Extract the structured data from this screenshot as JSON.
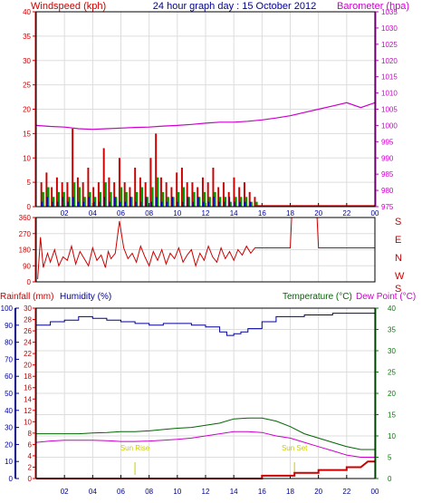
{
  "header": {
    "left_label": "Windspeed (kph)",
    "title": "24 hour graph day : 15 October 2012",
    "right_label": "Barometer (hpa)"
  },
  "colors": {
    "red": "#cc0000",
    "magenta": "#cc00cc",
    "blue": "#000099",
    "green": "#008000",
    "darkgreen": "#006600",
    "yellow": "#cccc00",
    "frame": "#000000",
    "wind_bar_red": "#cc0000",
    "wind_bar_green": "#009900",
    "wind_bar_blue": "#0000cc"
  },
  "chart_data": [
    {
      "id": "wind_baro",
      "type": "bar+line",
      "x_ticks": [
        "02",
        "04",
        "06",
        "08",
        "10",
        "12",
        "14",
        "16",
        "18",
        "20",
        "22",
        "00"
      ],
      "left_axis": {
        "label": "Windspeed (kph)",
        "ticks": [
          0,
          5,
          10,
          15,
          20,
          25,
          30,
          35,
          40
        ],
        "lim": [
          0,
          40
        ]
      },
      "right_axis": {
        "label": "Barometer (hpa)",
        "ticks": [
          975,
          980,
          985,
          990,
          995,
          1000,
          1005,
          1010,
          1015,
          1020,
          1025,
          1030,
          1035
        ],
        "lim": [
          975,
          1035
        ]
      },
      "barometer": {
        "x": [
          0,
          1,
          2,
          3,
          4,
          5,
          6,
          7,
          8,
          9,
          10,
          11,
          12,
          13,
          14,
          15,
          16,
          17,
          18,
          19,
          20,
          21,
          22,
          23,
          24
        ],
        "values": [
          1000,
          999.7,
          999.5,
          999,
          998.8,
          999,
          999.2,
          999.4,
          999.5,
          999.8,
          1000,
          1000.3,
          1000.7,
          1001,
          1001,
          1001.3,
          1001.7,
          1002.3,
          1003,
          1004,
          1005,
          1006,
          1007,
          1005.5,
          1007
        ]
      },
      "wind_gust": {
        "x_end": 15.5,
        "values": [
          5,
          7,
          4,
          6,
          5,
          5,
          16,
          6,
          5,
          8,
          4,
          5,
          12,
          6,
          5,
          10,
          5,
          4,
          8,
          6,
          5,
          10,
          15,
          6,
          5,
          4,
          7,
          8,
          5,
          5,
          4,
          6,
          5,
          8,
          4,
          5,
          3,
          6,
          4,
          5,
          3,
          2
        ]
      },
      "wind_avg": {
        "x_end": 15.5,
        "values": [
          3,
          4,
          2,
          3,
          3,
          2,
          5,
          4,
          2,
          3,
          2,
          3,
          5,
          3,
          2,
          4,
          3,
          2,
          3,
          4,
          2,
          4,
          6,
          3,
          2,
          2,
          3,
          4,
          2,
          3,
          2,
          3,
          2,
          3,
          2,
          2,
          1,
          2,
          2,
          2,
          1,
          1
        ]
      },
      "wind_dir_sample": {
        "x_end": 15.5,
        "values": [
          1,
          2,
          1,
          1,
          2,
          1,
          2,
          1,
          1,
          2,
          1,
          1,
          2,
          1,
          2,
          1,
          1,
          2,
          1,
          1,
          2,
          1,
          2,
          1,
          1,
          2,
          1,
          1,
          2,
          1,
          2,
          1,
          1,
          2,
          1,
          1,
          2,
          1,
          1,
          1,
          1,
          0
        ]
      },
      "wind_after_zero": {
        "x_start": 15.5,
        "x_end": 24,
        "value": 0
      }
    },
    {
      "id": "wind_direction",
      "type": "line",
      "x_ticks": [
        "02",
        "04",
        "06",
        "08",
        "10",
        "12",
        "14",
        "16",
        "18",
        "20",
        "22",
        "00"
      ],
      "left_axis": {
        "ticks": [
          0,
          90,
          180,
          270,
          360
        ],
        "lim": [
          0,
          360
        ]
      },
      "right_axis": {
        "labels": [
          "S",
          "E",
          "N",
          "W",
          "S"
        ]
      },
      "direction": {
        "x": [
          0.1,
          0.3,
          0.5,
          0.8,
          1.0,
          1.3,
          1.6,
          1.9,
          2.2,
          2.5,
          2.8,
          3.1,
          3.4,
          3.7,
          4.0,
          4.3,
          4.6,
          4.9,
          5.1,
          5.3,
          5.6,
          5.9,
          6.2,
          6.5,
          6.8,
          7.1,
          7.4,
          7.7,
          8.0,
          8.3,
          8.6,
          8.9,
          9.2,
          9.5,
          9.8,
          10.1,
          10.4,
          10.7,
          11.0,
          11.3,
          11.6,
          11.9,
          12.2,
          12.5,
          12.8,
          13.1,
          13.4,
          13.7,
          14.0,
          14.3,
          14.6,
          14.9,
          15.2,
          15.5,
          16.0,
          16.5,
          17.0,
          17.5,
          18.0,
          18.1,
          19.0,
          19.9,
          20.0,
          21.0,
          22.0,
          23.0,
          24.0
        ],
        "values": [
          15,
          250,
          80,
          160,
          110,
          180,
          90,
          140,
          120,
          200,
          100,
          170,
          130,
          90,
          190,
          120,
          150,
          80,
          170,
          130,
          160,
          340,
          190,
          130,
          160,
          110,
          200,
          140,
          90,
          170,
          120,
          180,
          100,
          160,
          130,
          190,
          110,
          150,
          180,
          90,
          160,
          120,
          200,
          140,
          110,
          190,
          130,
          170,
          120,
          180,
          150,
          200,
          160,
          190,
          190,
          190,
          190,
          190,
          190,
          360,
          360,
          360,
          190,
          190,
          190,
          190,
          190
        ]
      }
    },
    {
      "id": "rain_hum_temp",
      "type": "line",
      "x_ticks": [
        "02",
        "04",
        "06",
        "08",
        "10",
        "12",
        "14",
        "16",
        "18",
        "20",
        "22",
        "00"
      ],
      "labels": {
        "rainfall": "Rainfall (mm)",
        "humidity": "Humidity (%)",
        "temperature": "Temperature (°C)",
        "dewpoint": "Dew Point (°C)"
      },
      "humidity_axis": {
        "ticks": [
          0,
          10,
          20,
          30,
          40,
          50,
          60,
          70,
          80,
          90,
          100
        ],
        "lim": [
          0,
          100
        ]
      },
      "rainfall_axis": {
        "ticks": [
          0,
          2,
          4,
          6,
          8,
          10,
          12,
          14,
          16,
          18,
          20,
          22,
          24,
          26,
          28,
          30
        ],
        "lim": [
          0,
          30
        ]
      },
      "temp_axis": {
        "ticks": [
          0,
          5,
          10,
          15,
          20,
          25,
          30,
          35,
          40
        ],
        "lim": [
          0,
          40
        ]
      },
      "annotations": [
        {
          "text": "Sun Rise",
          "x": 7.0
        },
        {
          "text": "Sun Set",
          "x": 18.3
        }
      ],
      "humidity": {
        "x": [
          0,
          1,
          2,
          3,
          4,
          5,
          6,
          7,
          8,
          9,
          10,
          11,
          12,
          13,
          13.5,
          14,
          14.5,
          15,
          16,
          17,
          18,
          19,
          20,
          21,
          22,
          23,
          24
        ],
        "values": [
          90,
          92,
          93,
          95,
          94,
          93,
          92,
          91,
          90,
          91,
          91,
          90,
          89,
          86,
          84,
          85,
          86,
          88,
          92,
          95,
          95,
          96,
          96,
          97,
          97,
          97,
          97
        ]
      },
      "temperature": {
        "x": [
          0,
          1,
          2,
          3,
          4,
          5,
          6,
          7,
          8,
          9,
          10,
          11,
          12,
          13,
          14,
          15,
          16,
          17,
          18,
          19,
          20,
          21,
          22,
          23,
          24
        ],
        "values": [
          10.5,
          10.5,
          10.5,
          10.5,
          10.7,
          10.8,
          11,
          11,
          11.2,
          11.5,
          11.8,
          12,
          12.5,
          13,
          14,
          14.2,
          14.2,
          13.5,
          12.2,
          10.5,
          9.5,
          8.5,
          7.5,
          6.8,
          6.8
        ]
      },
      "dewpoint": {
        "x": [
          0,
          1,
          2,
          3,
          4,
          5,
          6,
          7,
          8,
          9,
          10,
          11,
          12,
          13,
          14,
          15,
          16,
          17,
          18,
          19,
          20,
          21,
          22,
          23,
          24
        ],
        "values": [
          8.5,
          8.8,
          9,
          9,
          9,
          8.9,
          8.7,
          8.7,
          8.8,
          9,
          9.2,
          9.5,
          10,
          10.5,
          11,
          11,
          10.8,
          10,
          9.5,
          8.5,
          7.5,
          6.5,
          5.5,
          5,
          5
        ]
      },
      "rainfall": {
        "x": [
          0,
          16,
          16,
          17,
          17,
          18,
          18,
          18.3,
          18.3,
          19,
          19,
          20,
          20,
          21,
          21,
          22,
          22,
          23,
          23,
          23.5,
          23.5,
          24
        ],
        "values": [
          0,
          0,
          0.5,
          0.5,
          0.5,
          0.5,
          0.5,
          0.5,
          1,
          1,
          1,
          1,
          1.5,
          1.5,
          1.5,
          1.5,
          2,
          2,
          2,
          3,
          3,
          3
        ]
      }
    }
  ]
}
